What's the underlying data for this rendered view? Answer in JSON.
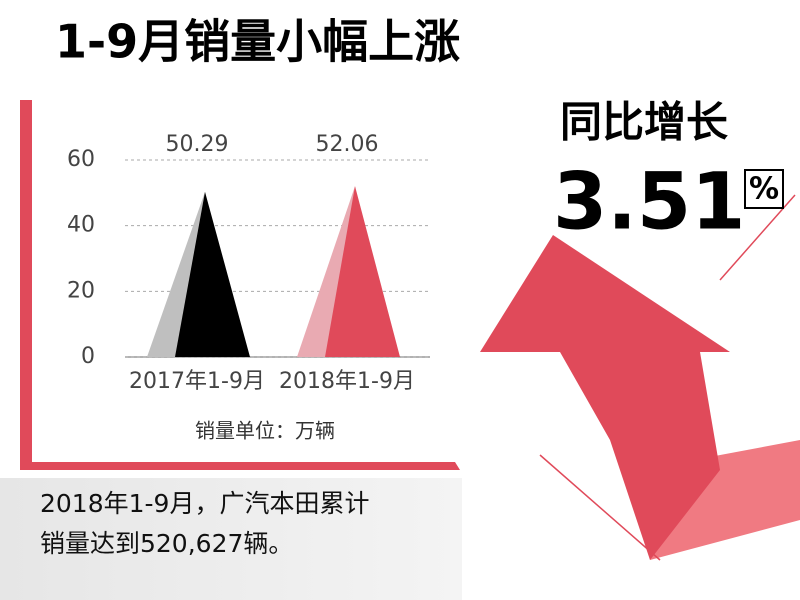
{
  "title": "1-9月销量小幅上涨",
  "growth": {
    "label": "同比增长",
    "value": "3.51",
    "unit": "%"
  },
  "chart_data": {
    "type": "pyramid",
    "categories": [
      "2017年1-9月",
      "2018年1-9月"
    ],
    "values": [
      50.29,
      52.06
    ],
    "colors": [
      "#000000",
      "#e04a5a"
    ],
    "shade_colors": [
      "#bfbfbf",
      "#e9aab2"
    ],
    "ylim": [
      0,
      60
    ],
    "yticks": [
      0,
      20,
      40,
      60
    ],
    "grid": true,
    "unit_note": "销量单位：万辆"
  },
  "footer": {
    "lines": [
      "2018年1-9月，广汽本田累计",
      "销量达到520,627辆。"
    ]
  }
}
